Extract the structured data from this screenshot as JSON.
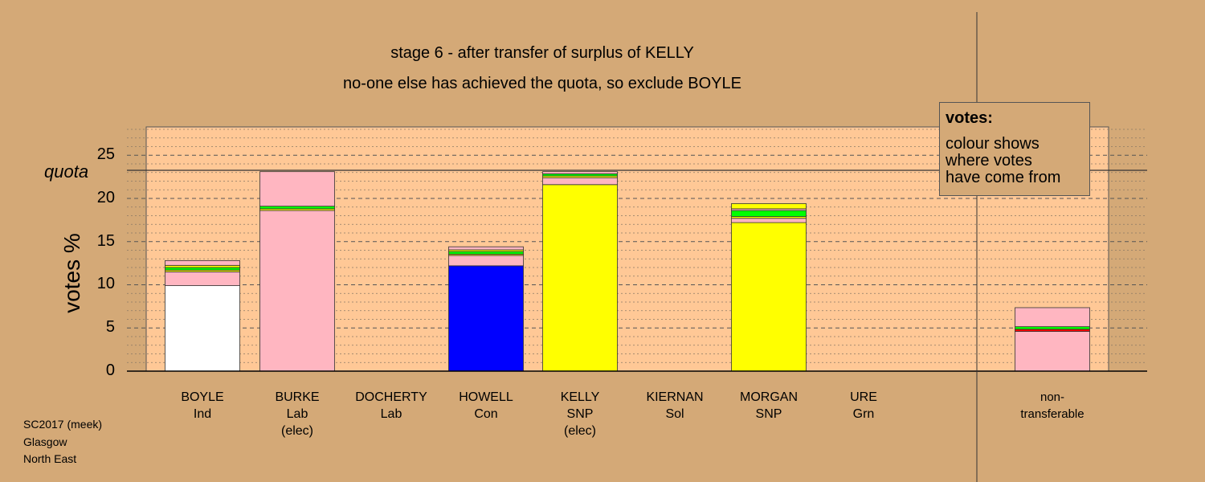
{
  "chart_data": {
    "type": "bar",
    "stacked": true,
    "title": "stage 6 - after transfer of surplus of KELLY",
    "subtitle": "no-one else has achieved the quota, so exclude BOYLE",
    "ylabel": "votes %",
    "ylim": [
      0,
      28
    ],
    "yticks": [
      0,
      5,
      10,
      15,
      20,
      25
    ],
    "quota": 23.1,
    "quota_label": "quota",
    "grid": true,
    "categories": [
      {
        "name": "BOYLE",
        "party": "Ind",
        "note": ""
      },
      {
        "name": "BURKE",
        "party": "Lab",
        "note": "(elec)"
      },
      {
        "name": "DOCHERTY",
        "party": "Lab",
        "note": ""
      },
      {
        "name": "HOWELL",
        "party": "Con",
        "note": ""
      },
      {
        "name": "KELLY",
        "party": "SNP",
        "note": "(elec)"
      },
      {
        "name": "KIERNAN",
        "party": "Sol",
        "note": ""
      },
      {
        "name": "MORGAN",
        "party": "SNP",
        "note": ""
      },
      {
        "name": "URE",
        "party": "Grn",
        "note": ""
      }
    ],
    "nontransferable": {
      "line1": "non-",
      "line2": "transferable"
    },
    "stacks": [
      [
        {
          "value": 9.9,
          "color": "#FFFFFF"
        },
        {
          "value": 1.6,
          "color": "#FFB6C1"
        },
        {
          "value": 0.2,
          "color": "#FFFF00"
        },
        {
          "value": 0.3,
          "color": "#00FF00"
        },
        {
          "value": 0.25,
          "color": "#FFFF00"
        },
        {
          "value": 0.55,
          "color": "#FFB6C1"
        }
      ],
      [
        {
          "value": 18.6,
          "color": "#FFB6C1"
        },
        {
          "value": 0.2,
          "color": "#FFFF00"
        },
        {
          "value": 0.3,
          "color": "#00FF00"
        },
        {
          "value": 4.0,
          "color": "#FFB6C1"
        }
      ],
      [],
      [
        {
          "value": 12.2,
          "color": "#0000FF"
        },
        {
          "value": 1.2,
          "color": "#FFB6C1"
        },
        {
          "value": 0.15,
          "color": "#FFFF00"
        },
        {
          "value": 0.3,
          "color": "#00FF00"
        },
        {
          "value": 0.2,
          "color": "#FFFF00"
        },
        {
          "value": 0.35,
          "color": "#FFB6C1"
        }
      ],
      [
        {
          "value": 21.6,
          "color": "#FFFF00"
        },
        {
          "value": 0.8,
          "color": "#FFB6C1"
        },
        {
          "value": 0.2,
          "color": "#FFFF00"
        },
        {
          "value": 0.25,
          "color": "#00FF00"
        },
        {
          "value": 0.25,
          "color": "#FFB6C1"
        }
      ],
      [],
      [
        {
          "value": 17.2,
          "color": "#FFFF00"
        },
        {
          "value": 0.5,
          "color": "#FFB6C1"
        },
        {
          "value": 0.2,
          "color": "#FFFF00"
        },
        {
          "value": 0.7,
          "color": "#00FF00"
        },
        {
          "value": 0.2,
          "color": "#FFB6C1"
        },
        {
          "value": 0.6,
          "color": "#FFFF00"
        }
      ],
      []
    ],
    "nontransferable_stack": [
      {
        "value": 4.6,
        "color": "#FFB6C1"
      },
      {
        "value": 0.25,
        "color": "#FF0000"
      },
      {
        "value": 0.3,
        "color": "#00FF00"
      },
      {
        "value": 2.2,
        "color": "#FFB6C1"
      }
    ]
  },
  "legend": {
    "heading": "votes:",
    "line1": "colour shows",
    "line2": "where votes",
    "line3": "have come from"
  },
  "footer": {
    "line1": "SC2017 (meek)",
    "line2": "Glasgow",
    "line3": "North East"
  }
}
